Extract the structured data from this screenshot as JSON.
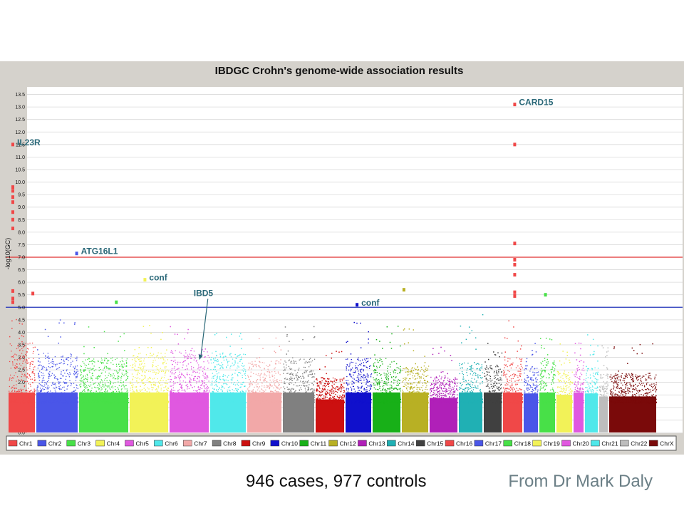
{
  "chart_data": {
    "type": "scatter",
    "title": "IBDGC Crohn's genome-wide association results",
    "ylabel": "-log10(GC)",
    "xlabel": "",
    "ylim": [
      0,
      13.8
    ],
    "yticks": [
      "0.0",
      "0.5",
      "1.0",
      "1.5",
      "2.0",
      "2.5",
      "3.0",
      "3.5",
      "4.0",
      "4.5",
      "5.0",
      "5.5",
      "6.0",
      "6.5",
      "7.0",
      "7.5",
      "8.0",
      "8.5",
      "9.0",
      "9.5",
      "10.0",
      "10.5",
      "11.0",
      "11.5",
      "12.0",
      "12.5",
      "13.0",
      "13.5"
    ],
    "thresholds": [
      {
        "value": 7.0,
        "color": "#e03030"
      },
      {
        "value": 5.0,
        "color": "#2233bb"
      }
    ],
    "legend": {
      "position": "bottom",
      "entries": [
        "Chr1",
        "Chr2",
        "Chr3",
        "Chr4",
        "Chr5",
        "Chr6",
        "Chr7",
        "Chr8",
        "Chr9",
        "Chr10",
        "Chr11",
        "Chr12",
        "Chr13",
        "Chr14",
        "Chr15",
        "Chr16",
        "Chr17",
        "Chr18",
        "Chr19",
        "Chr20",
        "Chr21",
        "Chr22",
        "ChrX"
      ]
    },
    "series": [
      {
        "name": "Chr1",
        "color": "#f04848",
        "typical_max": 3.6,
        "peak": 4.7
      },
      {
        "name": "Chr2",
        "color": "#4a56e8",
        "typical_max": 3.2,
        "peak": 4.6
      },
      {
        "name": "Chr3",
        "color": "#48e048",
        "typical_max": 3.0,
        "peak": 4.3
      },
      {
        "name": "Chr4",
        "color": "#f2f258",
        "typical_max": 3.2,
        "peak": 4.3
      },
      {
        "name": "Chr5",
        "color": "#e058e0",
        "typical_max": 3.3,
        "peak": 4.3
      },
      {
        "name": "Chr6",
        "color": "#50e8ea",
        "typical_max": 3.2,
        "peak": 4.0
      },
      {
        "name": "Chr7",
        "color": "#f2a8a8",
        "typical_max": 2.9,
        "peak": 3.8
      },
      {
        "name": "Chr8",
        "color": "#808080",
        "typical_max": 3.0,
        "peak": 4.4
      },
      {
        "name": "Chr9",
        "color": "#cc1010",
        "typical_max": 2.2,
        "peak": 3.4
      },
      {
        "name": "Chr10",
        "color": "#1010cc",
        "typical_max": 3.0,
        "peak": 4.6
      },
      {
        "name": "Chr11",
        "color": "#18b018",
        "typical_max": 3.0,
        "peak": 4.6
      },
      {
        "name": "Chr12",
        "color": "#b8b024",
        "typical_max": 2.7,
        "peak": 4.2
      },
      {
        "name": "Chr13",
        "color": "#b020b8",
        "typical_max": 2.3,
        "peak": 3.5
      },
      {
        "name": "Chr14",
        "color": "#20b0b4",
        "typical_max": 2.8,
        "peak": 4.8
      },
      {
        "name": "Chr15",
        "color": "#404040",
        "typical_max": 2.7,
        "peak": 3.6
      },
      {
        "name": "Chr16",
        "color": "#f04848",
        "typical_max": 3.0,
        "peak": 4.5
      },
      {
        "name": "Chr17",
        "color": "#4a56e8",
        "typical_max": 2.6,
        "peak": 3.7
      },
      {
        "name": "Chr18",
        "color": "#48e048",
        "typical_max": 2.9,
        "peak": 3.8
      },
      {
        "name": "Chr19",
        "color": "#f2f258",
        "typical_max": 2.5,
        "peak": 3.6
      },
      {
        "name": "Chr20",
        "color": "#e058e0",
        "typical_max": 2.7,
        "peak": 3.7
      },
      {
        "name": "Chr21",
        "color": "#50e8ea",
        "typical_max": 2.6,
        "peak": 4.0
      },
      {
        "name": "Chr22",
        "color": "#bdbdbd",
        "typical_max": 2.4,
        "peak": 3.5
      },
      {
        "name": "ChrX",
        "color": "#7a0a0a",
        "typical_max": 2.4,
        "peak": 3.6
      }
    ],
    "highlighted_points": [
      {
        "chr": "Chr1",
        "pos": 0.18,
        "y": 11.5,
        "color": "#f04848"
      },
      {
        "chr": "Chr1",
        "pos": 0.18,
        "y": 9.8,
        "color": "#f04848"
      },
      {
        "chr": "Chr1",
        "pos": 0.18,
        "y": 9.65,
        "color": "#f04848"
      },
      {
        "chr": "Chr1",
        "pos": 0.18,
        "y": 9.4,
        "color": "#f04848"
      },
      {
        "chr": "Chr1",
        "pos": 0.18,
        "y": 9.2,
        "color": "#f04848"
      },
      {
        "chr": "Chr1",
        "pos": 0.18,
        "y": 8.8,
        "color": "#f04848"
      },
      {
        "chr": "Chr1",
        "pos": 0.18,
        "y": 8.5,
        "color": "#f04848"
      },
      {
        "chr": "Chr1",
        "pos": 0.18,
        "y": 8.15,
        "color": "#f04848"
      },
      {
        "chr": "Chr1",
        "pos": 0.18,
        "y": 5.65,
        "color": "#f04848"
      },
      {
        "chr": "Chr1",
        "pos": 0.18,
        "y": 5.35,
        "color": "#f04848"
      },
      {
        "chr": "Chr1",
        "pos": 0.18,
        "y": 5.2,
        "color": "#f04848"
      },
      {
        "chr": "Chr1",
        "pos": 0.9,
        "y": 5.55,
        "color": "#f04848"
      },
      {
        "chr": "Chr2",
        "pos": 0.96,
        "y": 7.15,
        "color": "#4a56e8"
      },
      {
        "chr": "Chr3",
        "pos": 0.75,
        "y": 5.2,
        "color": "#48e048"
      },
      {
        "chr": "Chr4",
        "pos": 0.4,
        "y": 6.1,
        "color": "#f2f258"
      },
      {
        "chr": "Chr10",
        "pos": 0.45,
        "y": 5.1,
        "color": "#1010cc"
      },
      {
        "chr": "Chr12",
        "pos": 0.1,
        "y": 5.7,
        "color": "#b8b024"
      },
      {
        "chr": "Chr16",
        "pos": 0.6,
        "y": 13.1,
        "color": "#f04848"
      },
      {
        "chr": "Chr16",
        "pos": 0.6,
        "y": 11.5,
        "color": "#f04848"
      },
      {
        "chr": "Chr16",
        "pos": 0.6,
        "y": 7.55,
        "color": "#f04848"
      },
      {
        "chr": "Chr16",
        "pos": 0.6,
        "y": 6.9,
        "color": "#f04848"
      },
      {
        "chr": "Chr16",
        "pos": 0.6,
        "y": 6.7,
        "color": "#f04848"
      },
      {
        "chr": "Chr16",
        "pos": 0.6,
        "y": 6.3,
        "color": "#f04848"
      },
      {
        "chr": "Chr16",
        "pos": 0.6,
        "y": 5.6,
        "color": "#f04848"
      },
      {
        "chr": "Chr16",
        "pos": 0.6,
        "y": 5.45,
        "color": "#f04848"
      },
      {
        "chr": "Chr18",
        "pos": 0.4,
        "y": 5.5,
        "color": "#48e048"
      }
    ],
    "annotations": [
      {
        "text": "IL23R",
        "chr": "Chr1",
        "pos": 0.18,
        "y": 11.5,
        "color": "#2a6878"
      },
      {
        "text": "CARD15",
        "chr": "Chr16",
        "pos": 0.6,
        "y": 13.1,
        "color": "#2a6878"
      },
      {
        "text": "ATG16L1",
        "chr": "Chr2",
        "pos": 0.96,
        "y": 7.15,
        "color": "#2a6878"
      },
      {
        "text": "conf",
        "chr": "Chr4",
        "pos": 0.4,
        "y": 6.1,
        "color": "#2a6878"
      },
      {
        "text": "conf",
        "chr": "Chr10",
        "pos": 0.45,
        "y": 5.1,
        "color": "#2a6878"
      },
      {
        "text": "IBD5",
        "chr": "Chr5",
        "pos": 0.75,
        "y": 2.9,
        "color": "#2a6878",
        "arrow": true
      }
    ]
  },
  "footer": {
    "left": "946 cases, 977 controls",
    "right": "From Dr Mark Daly"
  },
  "colors": {
    "figure_background": "#d5d2cc",
    "plot_background": "#ffffff",
    "gridline": "#cfcfcf",
    "footer_right": "#6b7f86"
  }
}
